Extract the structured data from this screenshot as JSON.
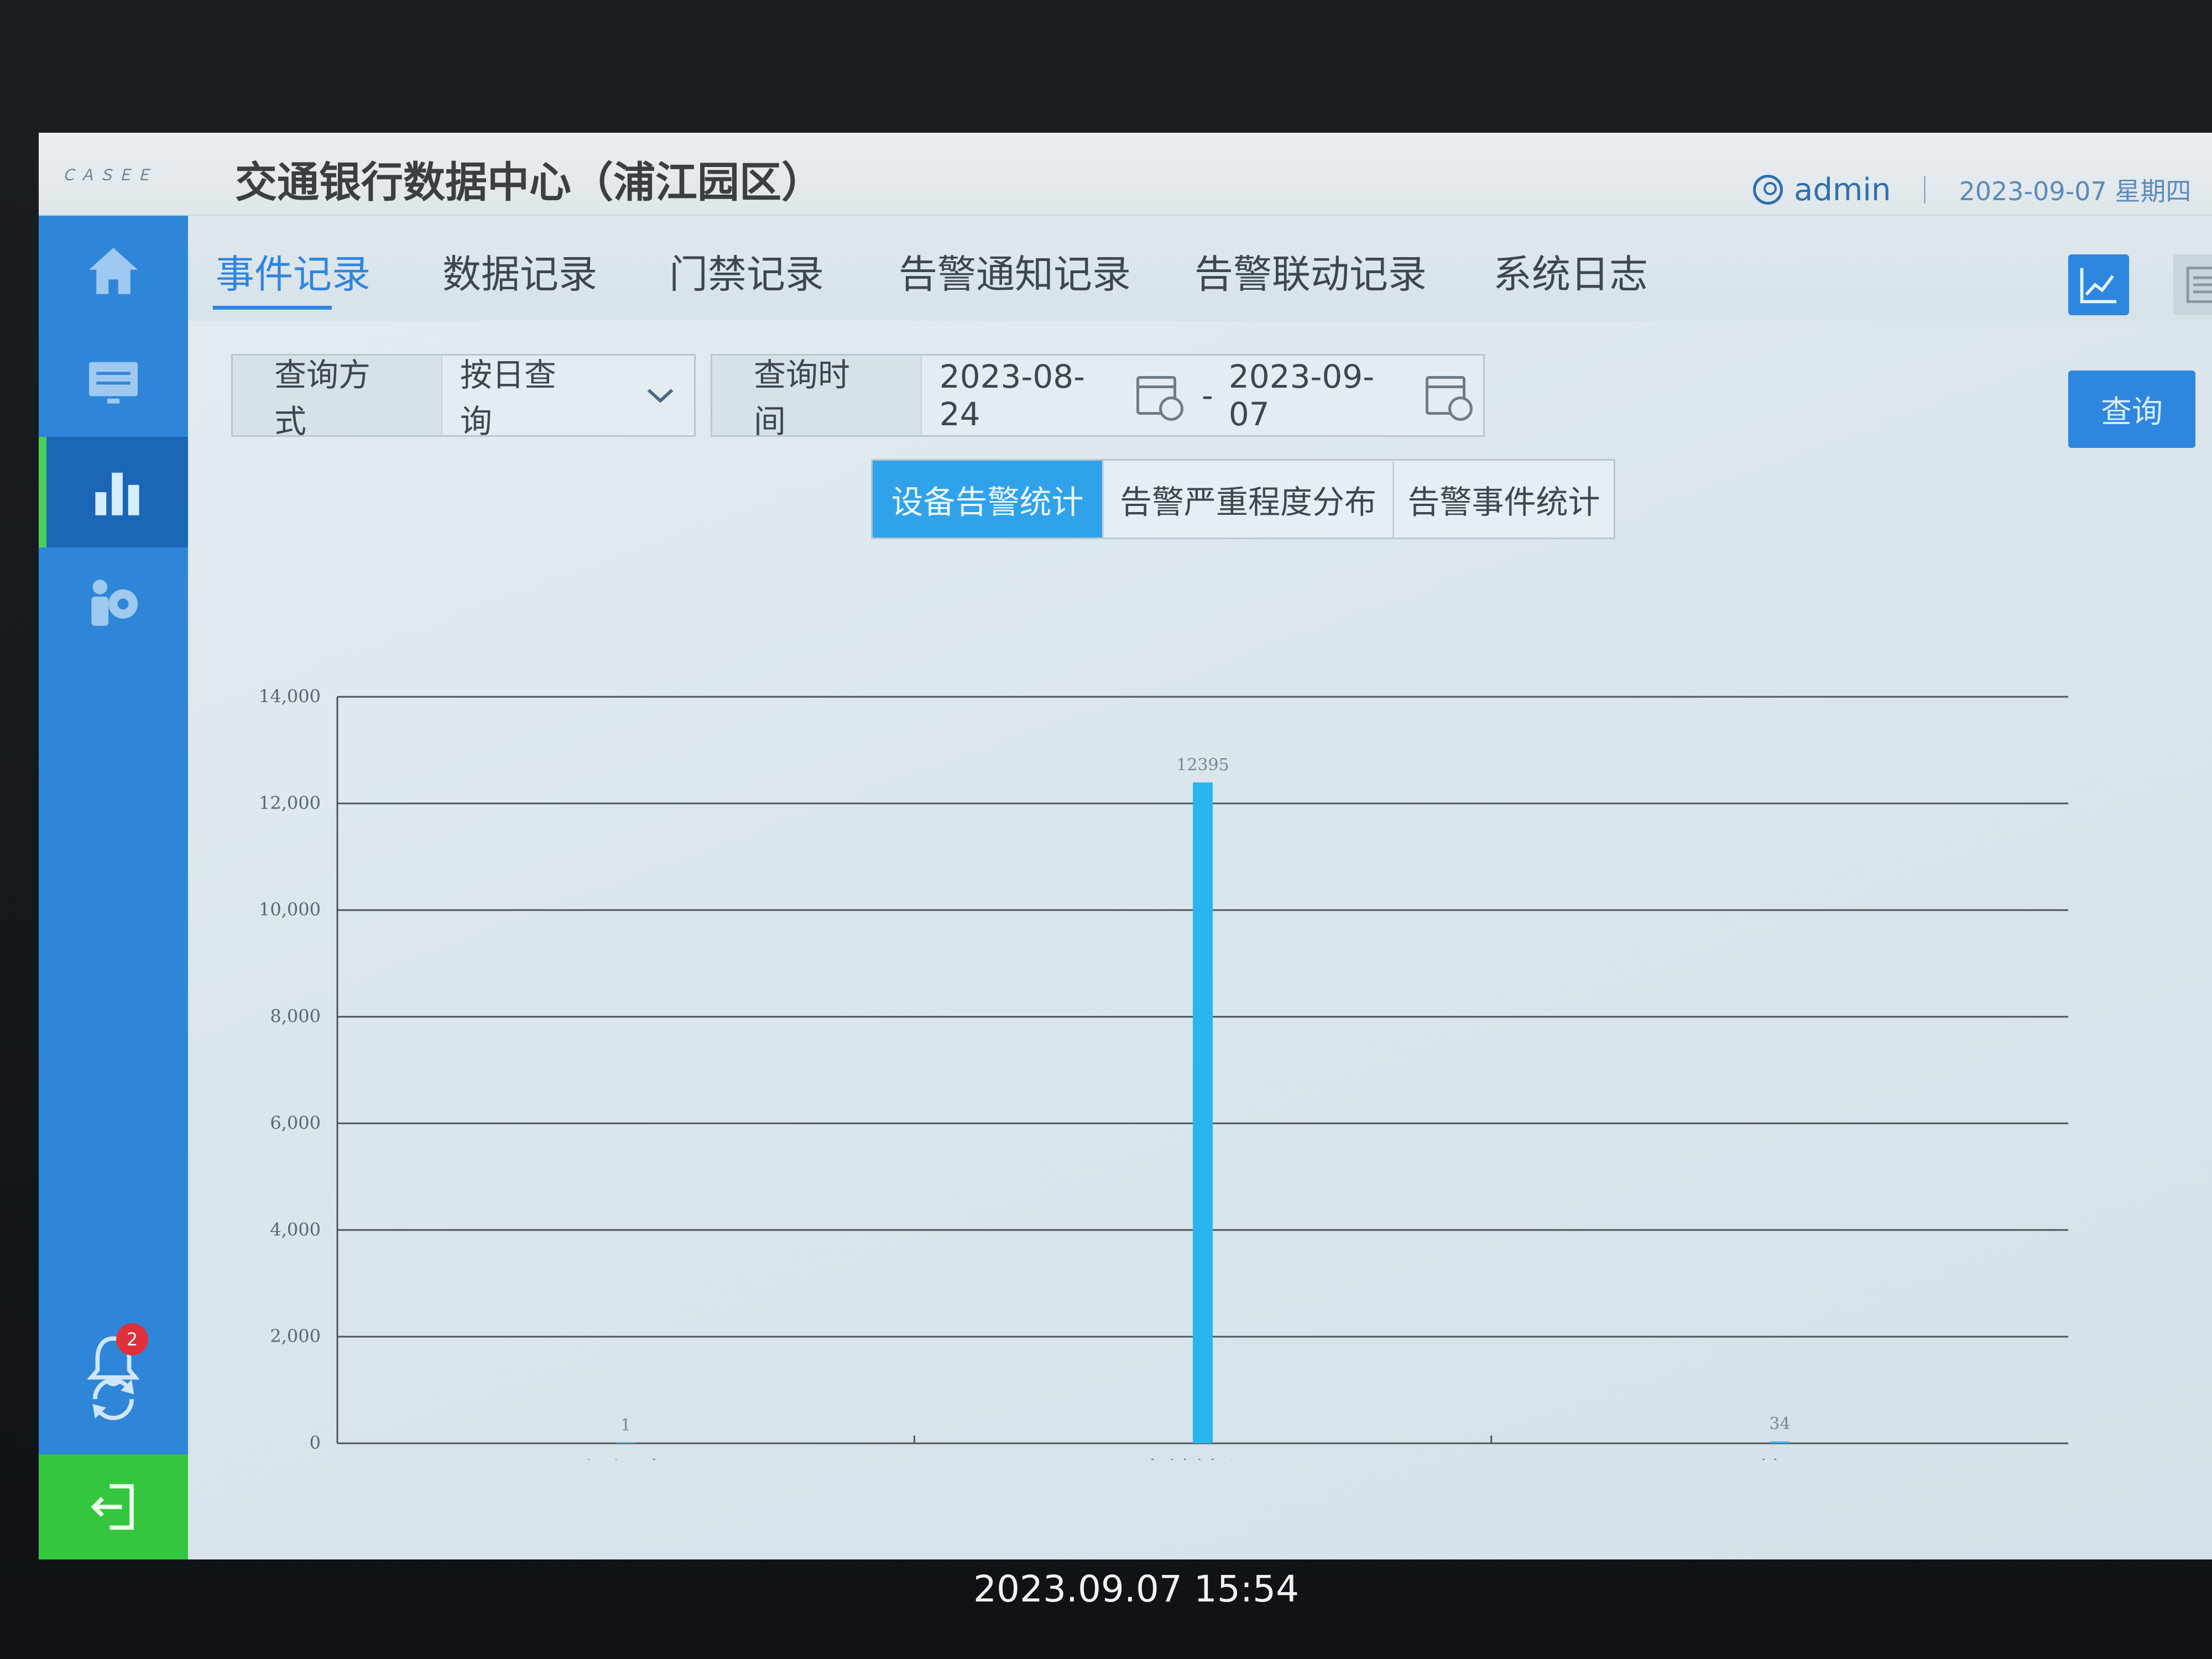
{
  "header": {
    "brand_logo_text": "ＣＡＳＥＥ",
    "title": "交通银行数据中心（浦江园区）",
    "user_name": "admin",
    "date": "2023-09-07 星期四"
  },
  "sidebar": {
    "items": [
      {
        "name": "home",
        "icon": "home-icon"
      },
      {
        "name": "monitor",
        "icon": "monitor-icon"
      },
      {
        "name": "statistics",
        "icon": "bar-chart-icon",
        "active": true
      },
      {
        "name": "settings",
        "icon": "user-gear-icon"
      }
    ],
    "bottom": [
      {
        "name": "notifications",
        "icon": "bell-icon",
        "badge": "2"
      },
      {
        "name": "refresh",
        "icon": "refresh-icon"
      },
      {
        "name": "logout",
        "icon": "logout-icon"
      }
    ]
  },
  "tabs": [
    {
      "label": "事件记录",
      "active": true
    },
    {
      "label": "数据记录"
    },
    {
      "label": "门禁记录"
    },
    {
      "label": "告警通知记录"
    },
    {
      "label": "告警联动记录"
    },
    {
      "label": "系统日志"
    }
  ],
  "query": {
    "mode_label": "查询方式",
    "mode_value": "按日查询",
    "time_label": "查询时间",
    "start_date": "2023-08-24",
    "separator": "-",
    "end_date": "2023-09-07",
    "button_label": "查询"
  },
  "sub_tabs": [
    {
      "label": "设备告警统计",
      "active": true
    },
    {
      "label": "告警严重程度分布"
    },
    {
      "label": "告警事件统计"
    }
  ],
  "chart_data": {
    "type": "bar",
    "categories": [
      "温湿度",
      "本地输入..",
      "IO管理.."
    ],
    "values": [
      1,
      12395,
      34
    ],
    "data_labels": [
      "1",
      "12395",
      "34"
    ],
    "ylim": [
      0,
      14000
    ],
    "yticks": [
      0,
      2000,
      4000,
      6000,
      8000,
      10000,
      12000,
      14000
    ],
    "ytick_labels": [
      "0",
      "2,000",
      "4,000",
      "6,000",
      "8,000",
      "10,000",
      "12,000",
      "14,000"
    ],
    "grid": true,
    "bar_color": "#29b6f0"
  },
  "photo_timestamp": "2023.09.07 15:54"
}
